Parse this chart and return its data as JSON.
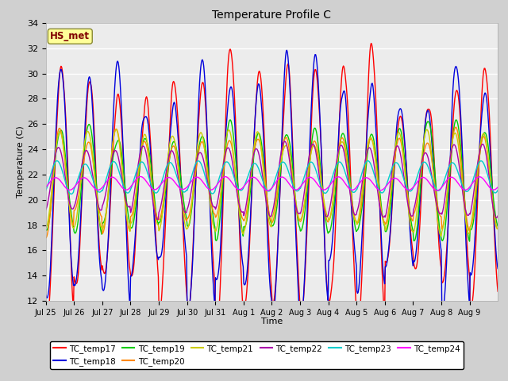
{
  "title": "Temperature Profile C",
  "xlabel": "Time",
  "ylabel": "Temperature (C)",
  "ylim": [
    12,
    34
  ],
  "series_colors": {
    "TC_temp17": "#ff0000",
    "TC_temp18": "#0000dd",
    "TC_temp19": "#00cc00",
    "TC_temp20": "#ff8800",
    "TC_temp21": "#cccc00",
    "TC_temp22": "#aa00aa",
    "TC_temp23": "#00cccc",
    "TC_temp24": "#ff00ff"
  },
  "annotation_text": "HS_met",
  "annotation_color": "#800000",
  "annotation_bg": "#ffff99",
  "tick_labels": [
    "Jul 25",
    "Jul 26",
    "Jul 27",
    "Jul 28",
    "Jul 29",
    "Jul 30",
    "Jul 31",
    "Aug 1",
    "Aug 2",
    "Aug 3",
    "Aug 4",
    "Aug 5",
    "Aug 6",
    "Aug 7",
    "Aug 8",
    "Aug 9"
  ]
}
